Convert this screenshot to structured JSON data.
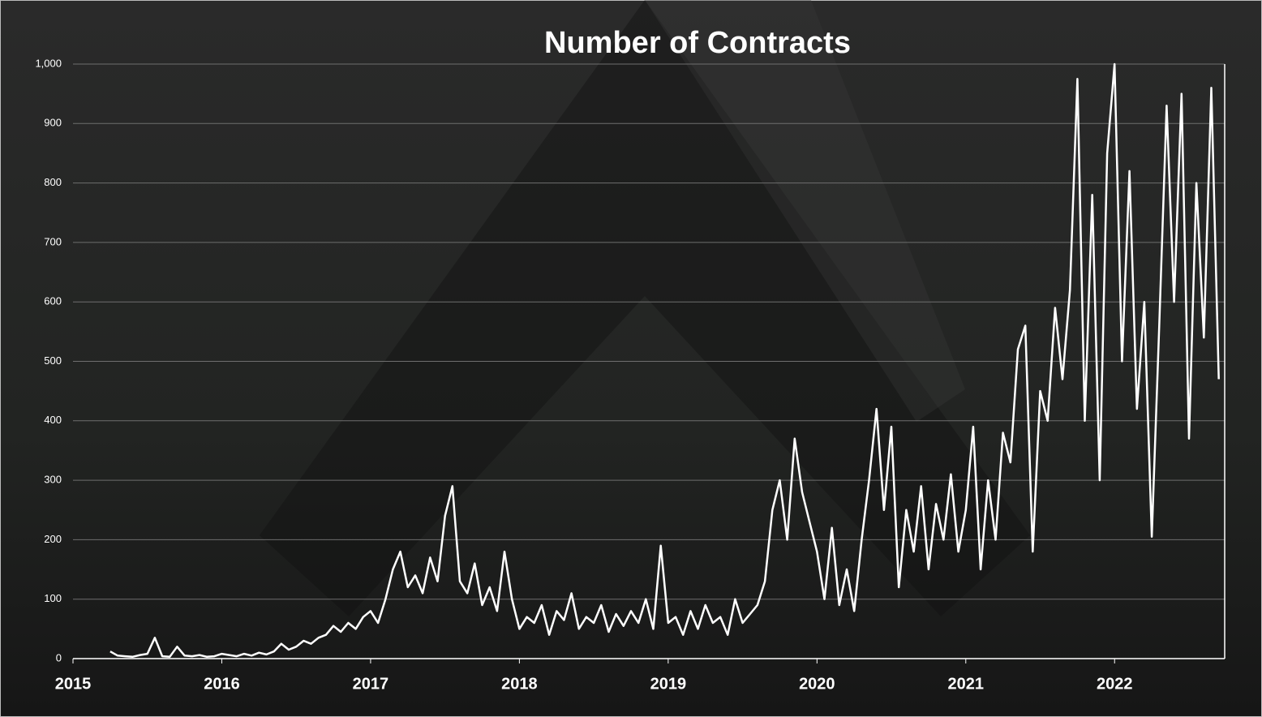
{
  "chart_data": {
    "type": "line",
    "title": "Number of Contracts",
    "x": [
      2015.25,
      2015.3,
      2015.35,
      2015.4,
      2015.45,
      2015.5,
      2015.55,
      2015.6,
      2015.65,
      2015.7,
      2015.75,
      2015.8,
      2015.85,
      2015.9,
      2015.95,
      2016.0,
      2016.05,
      2016.1,
      2016.15,
      2016.2,
      2016.25,
      2016.3,
      2016.35,
      2016.4,
      2016.45,
      2016.5,
      2016.55,
      2016.6,
      2016.65,
      2016.7,
      2016.75,
      2016.8,
      2016.85,
      2016.9,
      2016.95,
      2017.0,
      2017.05,
      2017.1,
      2017.15,
      2017.2,
      2017.25,
      2017.3,
      2017.35,
      2017.4,
      2017.45,
      2017.5,
      2017.55,
      2017.6,
      2017.65,
      2017.7,
      2017.75,
      2017.8,
      2017.85,
      2017.9,
      2017.95,
      2018.0,
      2018.05,
      2018.1,
      2018.15,
      2018.2,
      2018.25,
      2018.3,
      2018.35,
      2018.4,
      2018.45,
      2018.5,
      2018.55,
      2018.6,
      2018.65,
      2018.7,
      2018.75,
      2018.8,
      2018.85,
      2018.9,
      2018.95,
      2019.0,
      2019.05,
      2019.1,
      2019.15,
      2019.2,
      2019.25,
      2019.3,
      2019.35,
      2019.4,
      2019.45,
      2019.5,
      2019.55,
      2019.6,
      2019.65,
      2019.7,
      2019.75,
      2019.8,
      2019.85,
      2019.9,
      2019.95,
      2020.0,
      2020.05,
      2020.1,
      2020.15,
      2020.2,
      2020.25,
      2020.3,
      2020.35,
      2020.4,
      2020.45,
      2020.5,
      2020.55,
      2020.6,
      2020.65,
      2020.7,
      2020.75,
      2020.8,
      2020.85,
      2020.9,
      2020.95,
      2021.0,
      2021.05,
      2021.1,
      2021.15,
      2021.2,
      2021.25,
      2021.3,
      2021.35,
      2021.4,
      2021.45,
      2021.5,
      2021.55,
      2021.6,
      2021.65,
      2021.7,
      2021.75,
      2021.8,
      2021.85,
      2021.9,
      2021.95,
      2022.0,
      2022.05,
      2022.1,
      2022.15,
      2022.2,
      2022.25,
      2022.3,
      2022.35,
      2022.4,
      2022.45,
      2022.5,
      2022.55,
      2022.6,
      2022.65,
      2022.7
    ],
    "series": [
      {
        "color": "#ffffff",
        "values": [
          12,
          5,
          4,
          3,
          6,
          8,
          35,
          4,
          3,
          20,
          5,
          4,
          6,
          3,
          4,
          8,
          6,
          4,
          8,
          5,
          10,
          7,
          12,
          25,
          15,
          20,
          30,
          25,
          35,
          40,
          55,
          45,
          60,
          50,
          70,
          80,
          60,
          100,
          150,
          180,
          120,
          140,
          110,
          170,
          130,
          240,
          290,
          130,
          110,
          160,
          90,
          120,
          80,
          180,
          100,
          50,
          70,
          60,
          90,
          40,
          80,
          65,
          110,
          50,
          70,
          60,
          90,
          45,
          75,
          55,
          80,
          60,
          100,
          50,
          190,
          60,
          70,
          40,
          80,
          50,
          90,
          60,
          70,
          40,
          100,
          60,
          75,
          90,
          130,
          250,
          300,
          200,
          370,
          280,
          230,
          180,
          100,
          220,
          90,
          150,
          80,
          200,
          300,
          420,
          250,
          390,
          120,
          250,
          180,
          290,
          150,
          260,
          200,
          310,
          180,
          250,
          390,
          150,
          300,
          200,
          380,
          330,
          520,
          560,
          180,
          450,
          400,
          590,
          470,
          620,
          975,
          400,
          780,
          300,
          850,
          1000,
          500,
          820,
          420,
          600,
          205,
          560,
          930,
          600,
          950,
          370,
          800,
          540,
          960,
          470
        ]
      }
    ],
    "xlim": [
      2015,
      2022.74
    ],
    "xticks": [
      2015,
      2016,
      2017,
      2018,
      2019,
      2020,
      2021,
      2022
    ],
    "ylim": [
      0,
      1000
    ],
    "yticks": [
      0,
      100,
      200,
      300,
      400,
      500,
      600,
      700,
      800,
      900,
      {
        "value": 1000,
        "label": "1,000"
      }
    ],
    "grid": true
  }
}
